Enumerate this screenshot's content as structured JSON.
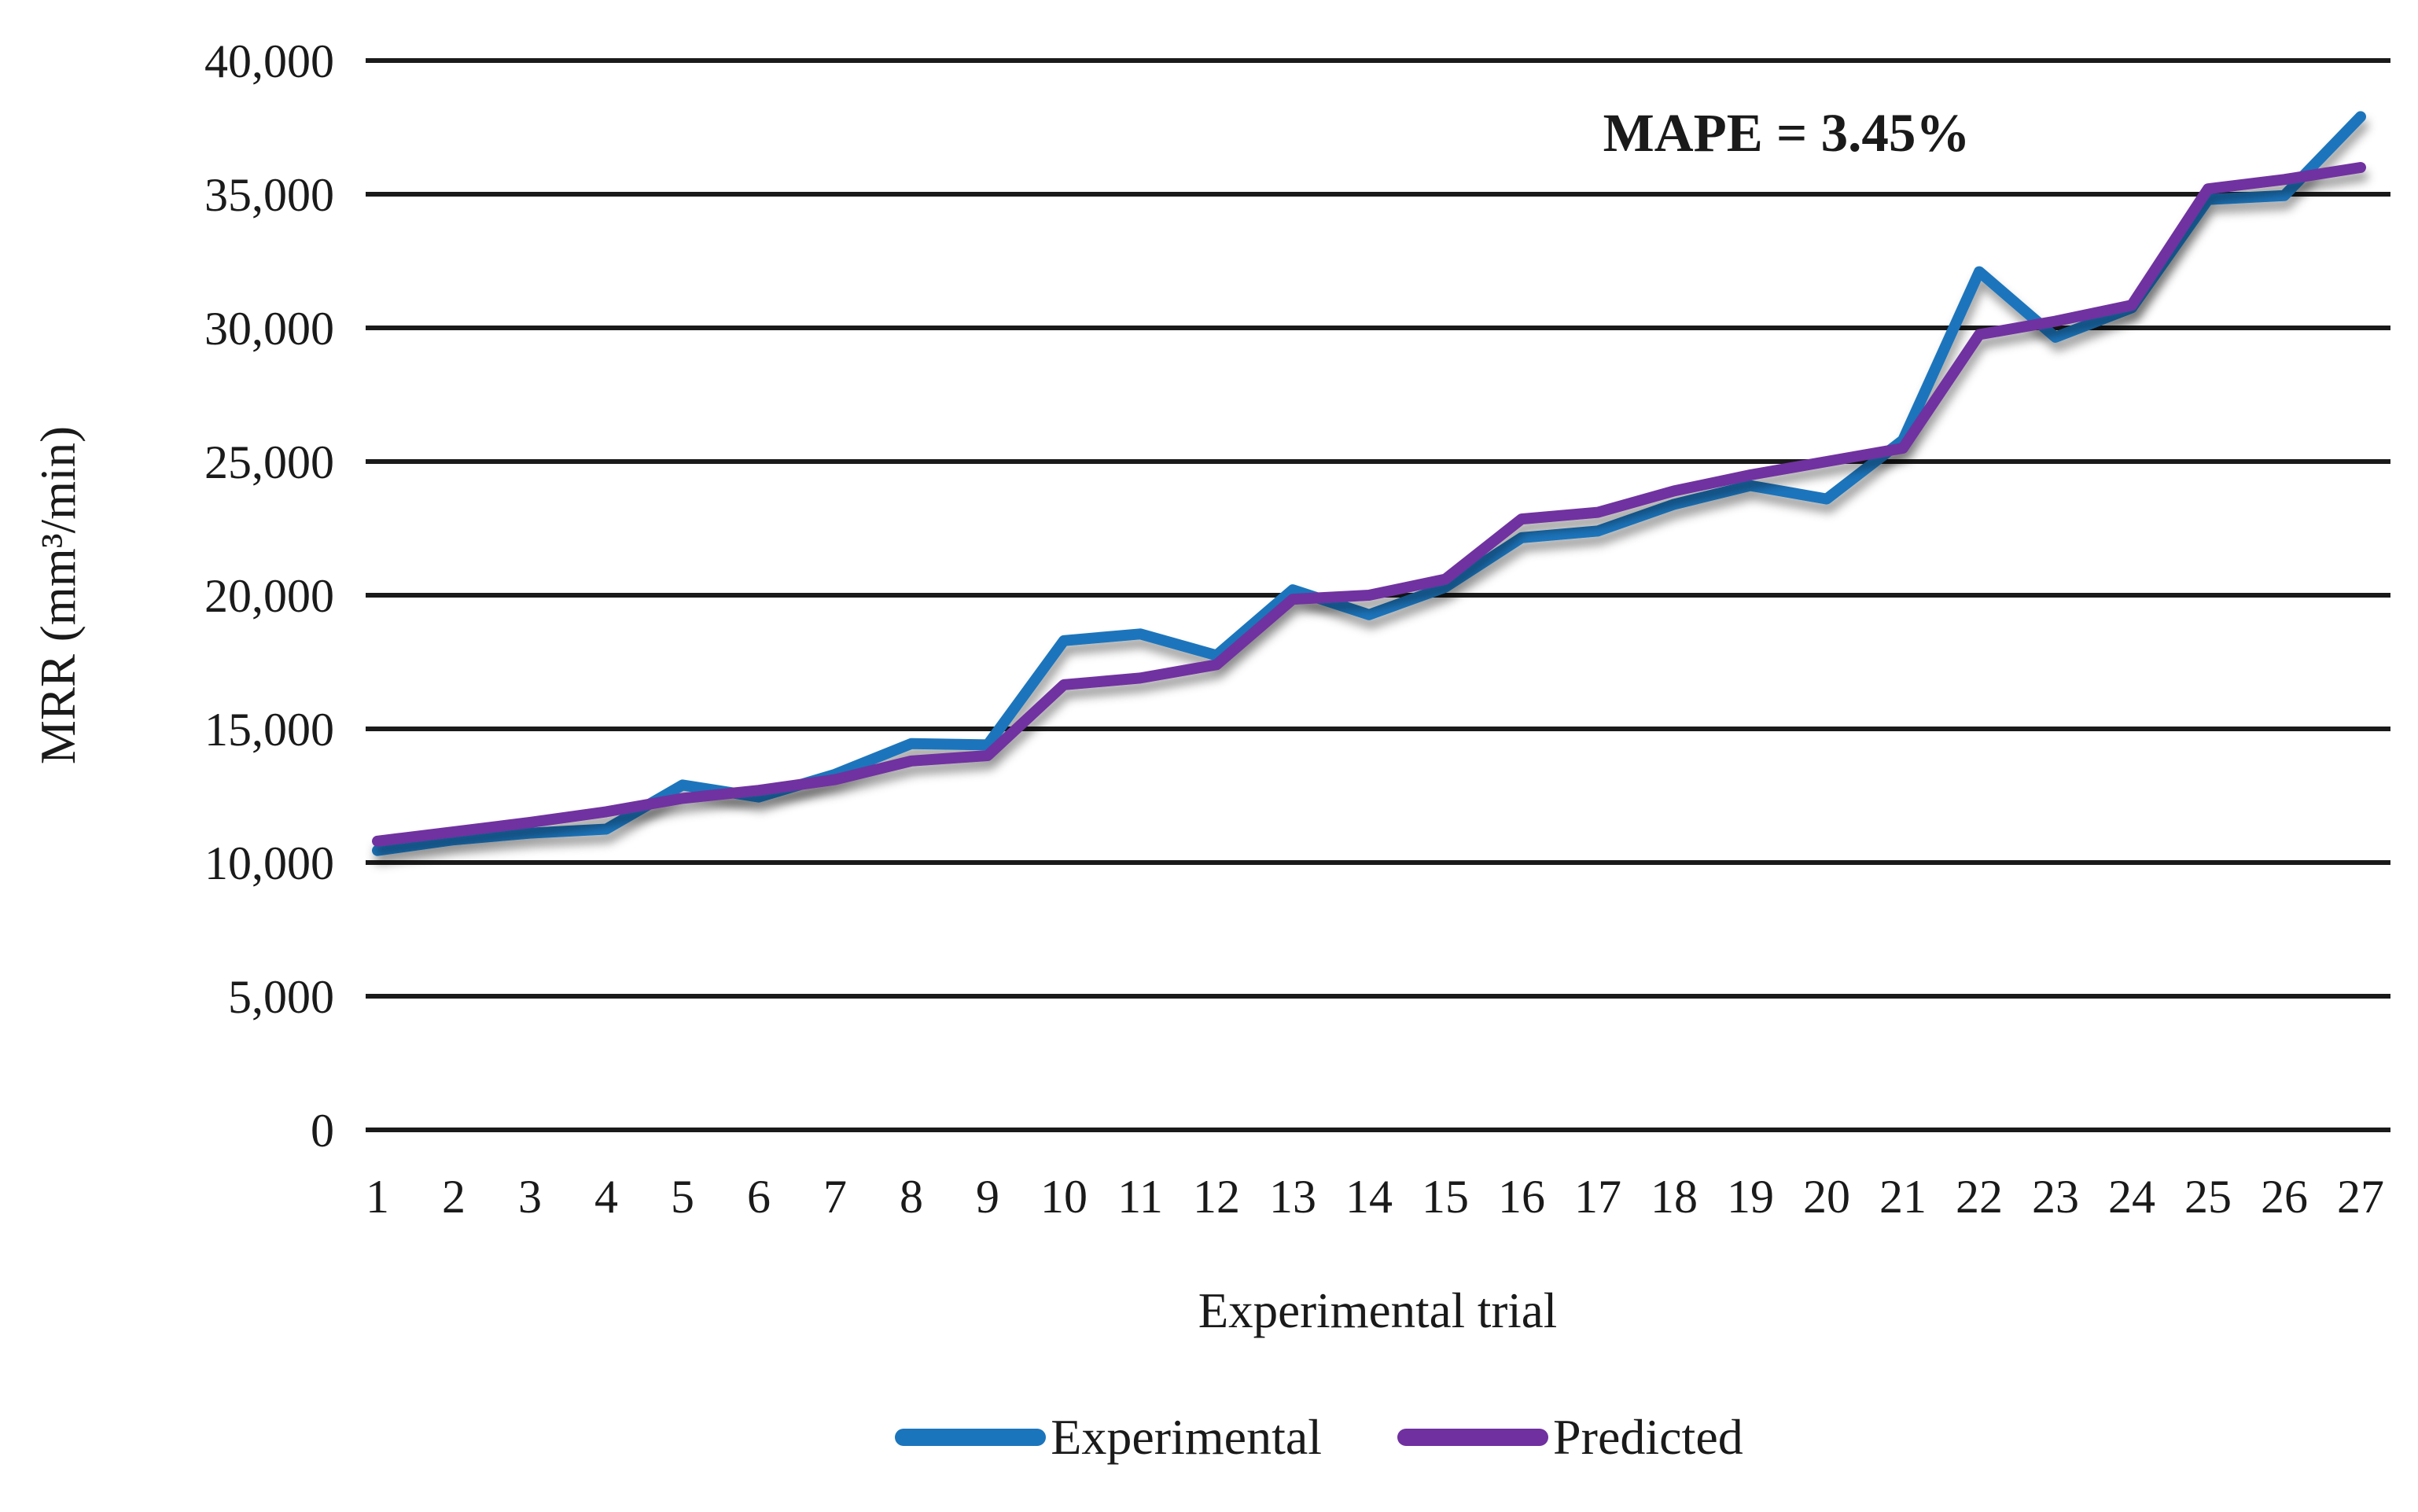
{
  "chart_data": {
    "type": "line",
    "title": "",
    "annotation": "MAPE = 3.45%",
    "xlabel": "Experimental trial",
    "ylabel": "MRR (mm³/min)",
    "x": [
      1,
      2,
      3,
      4,
      5,
      6,
      7,
      8,
      9,
      10,
      11,
      12,
      13,
      14,
      15,
      16,
      17,
      18,
      19,
      20,
      21,
      22,
      23,
      24,
      25,
      26,
      27
    ],
    "series": [
      {
        "name": "Experimental",
        "color": "#1b75bc",
        "values": [
          10450,
          10850,
          11100,
          11250,
          12900,
          12450,
          13300,
          14450,
          14400,
          18300,
          18550,
          17750,
          20200,
          19270,
          20300,
          22150,
          22400,
          23400,
          24100,
          23600,
          25800,
          32100,
          29650,
          30750,
          34800,
          34950,
          37900
        ]
      },
      {
        "name": "Predicted",
        "color": "#7030a0",
        "values": [
          10800,
          11150,
          11500,
          11900,
          12400,
          12700,
          13100,
          13800,
          14000,
          16650,
          16900,
          17400,
          19850,
          20000,
          20600,
          22850,
          23100,
          23900,
          24500,
          25000,
          25500,
          29750,
          30250,
          30850,
          35200,
          35550,
          36000
        ]
      }
    ],
    "ylim": [
      0,
      40000
    ],
    "ytick_step": 5000,
    "ytick_labels": [
      "0",
      "5,000",
      "10,000",
      "15,000",
      "20,000",
      "25,000",
      "30,000",
      "35,000",
      "40,000"
    ],
    "grid": true,
    "grid_color": "#1a1a1a",
    "text_color": "#1a1a1a",
    "legend_position": "bottom"
  },
  "legend": {
    "items": [
      {
        "label": "Experimental",
        "color": "#1b75bc"
      },
      {
        "label": "Predicted",
        "color": "#7030a0"
      }
    ]
  }
}
